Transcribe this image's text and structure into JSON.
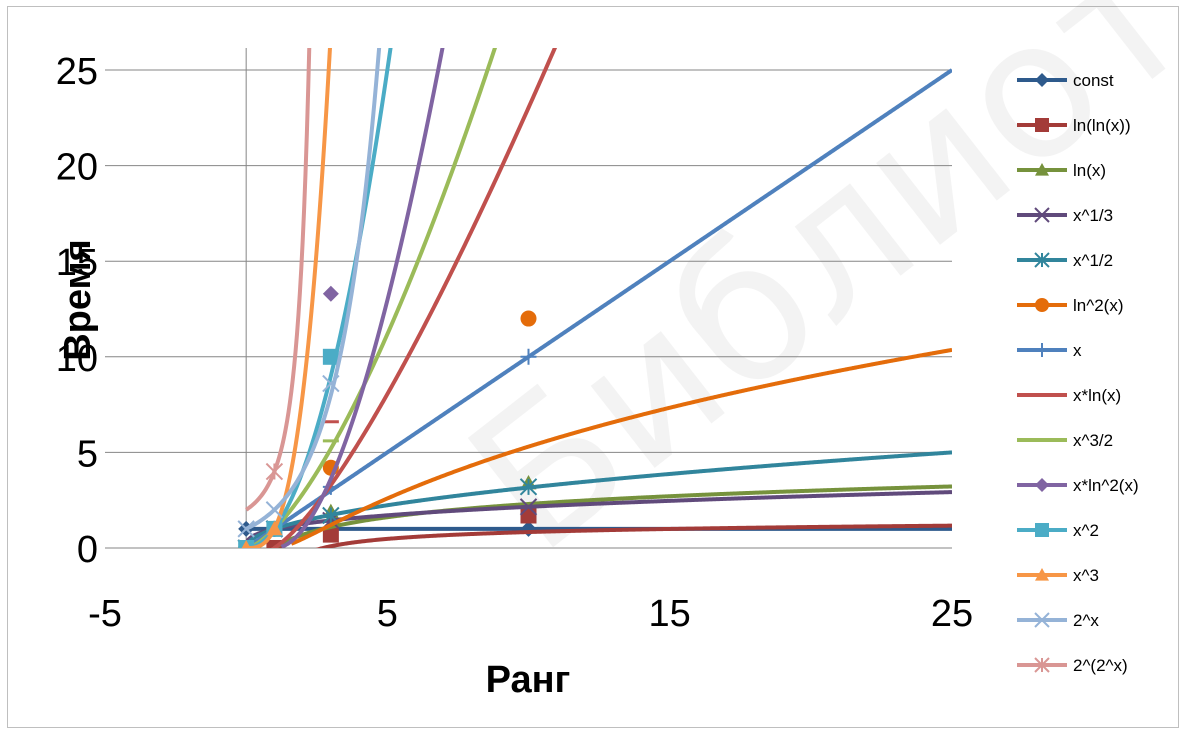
{
  "watermark": "Библиотека БГУИР",
  "chart_data": {
    "type": "line",
    "title": "",
    "xlabel": "Ранг",
    "ylabel": "Время",
    "xlim": [
      -5,
      25
    ],
    "ylim": [
      0,
      25
    ],
    "x_ticks": [
      "-5",
      "5",
      "15",
      "25"
    ],
    "y_ticks": [
      "0",
      "5",
      "10",
      "15",
      "20",
      "25"
    ],
    "grid": "horizontal",
    "legend_position": "right",
    "x": [
      0,
      1,
      3,
      10
    ],
    "series": [
      {
        "name": "const",
        "color": "#2E5A8C",
        "marker": "diamond",
        "values": [
          1,
          1,
          1,
          1
        ]
      },
      {
        "name": "ln(ln(x))",
        "color": "#A33B38",
        "marker": "square",
        "values": [
          null,
          0,
          0.7,
          1.7
        ]
      },
      {
        "name": "ln(x)",
        "color": "#76923C",
        "marker": "triangle",
        "values": [
          null,
          1,
          1.9,
          3.4
        ]
      },
      {
        "name": "x^1/3",
        "color": "#604A7B",
        "marker": "x",
        "values": [
          0,
          1,
          1.44,
          2.15
        ]
      },
      {
        "name": "x^1/2",
        "color": "#31859C",
        "marker": "asterisk",
        "values": [
          0,
          1,
          1.7,
          3.2
        ]
      },
      {
        "name": "ln^2(x)",
        "color": "#E46C0A",
        "marker": "circle",
        "values": [
          null,
          null,
          4.2,
          12
        ]
      },
      {
        "name": "x",
        "color": "#4F81BD",
        "marker": "plus",
        "values": [
          0,
          1,
          3.2,
          10
        ]
      },
      {
        "name": "x*ln(x)",
        "color": "#C0504D",
        "marker": "dash",
        "values": [
          0,
          1,
          6.6,
          null
        ]
      },
      {
        "name": "x^3/2",
        "color": "#9BBB59",
        "marker": "dash",
        "values": [
          0,
          1,
          5.6,
          null
        ]
      },
      {
        "name": "x*ln^2(x)",
        "color": "#8064A2",
        "marker": "diamond",
        "values": [
          null,
          1,
          13.3,
          null
        ]
      },
      {
        "name": "x^2",
        "color": "#4BACC6",
        "marker": "square",
        "values": [
          0,
          1,
          10,
          null
        ]
      },
      {
        "name": "x^3",
        "color": "#F79646",
        "marker": "triangle",
        "values": [
          0,
          1,
          null,
          null
        ]
      },
      {
        "name": "2^x",
        "color": "#95B3D7",
        "marker": "x",
        "values": [
          1,
          2,
          8.6,
          null
        ]
      },
      {
        "name": "2^(2^x)",
        "color": "#D99694",
        "marker": "asterisk",
        "values": [
          null,
          4,
          null,
          null
        ]
      }
    ]
  }
}
